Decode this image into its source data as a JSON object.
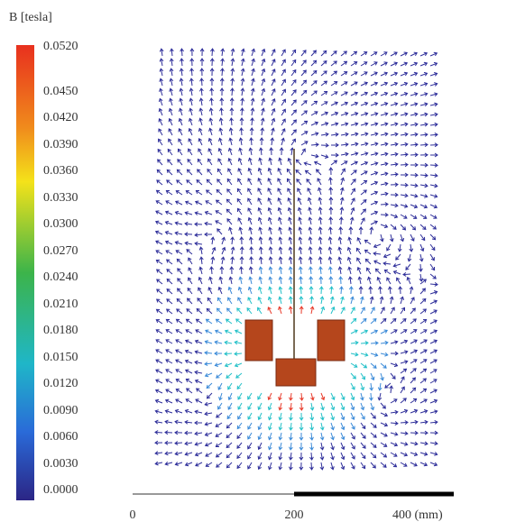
{
  "colorbar": {
    "title": "B [tesla]",
    "labels": [
      "0.0520",
      "0.0450",
      "0.0420",
      "0.0390",
      "0.0360",
      "0.0330",
      "0.0300",
      "0.0270",
      "0.0240",
      "0.0210",
      "0.0180",
      "0.0150",
      "0.0120",
      "0.0090",
      "0.0060",
      "0.0030",
      "0.0000"
    ]
  },
  "scale_bar": {
    "labels": [
      "0",
      "200",
      "400 (mm)"
    ]
  }
}
